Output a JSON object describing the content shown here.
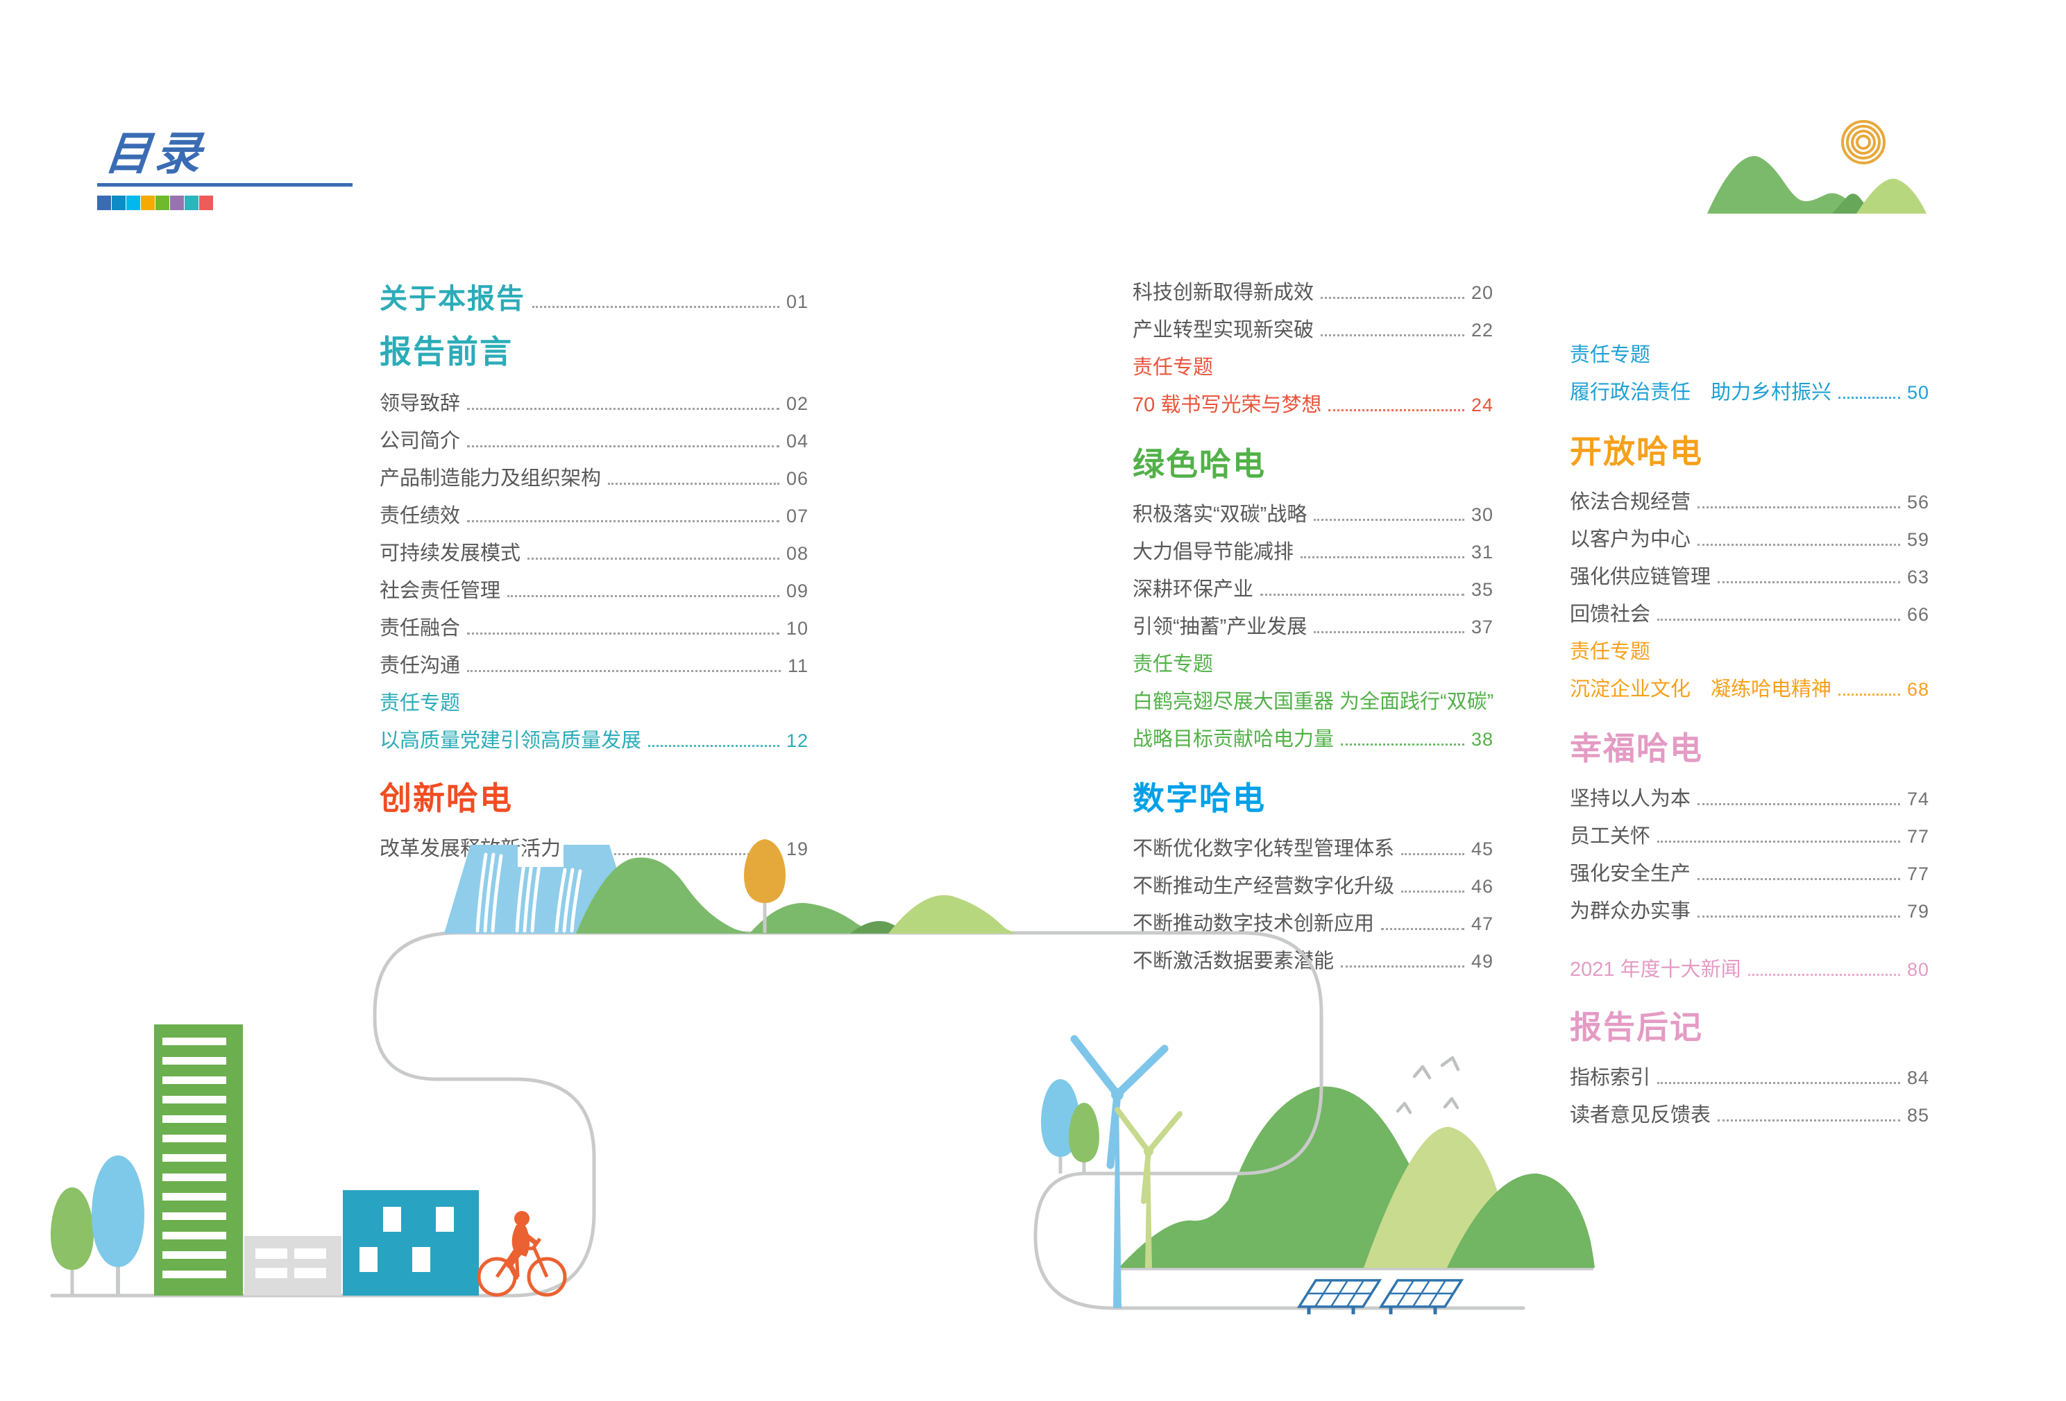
{
  "header": {
    "title": "目录"
  },
  "palette": {
    "title_blue": "#3A6CB4",
    "squares": [
      "#3A6CB4",
      "#0E8BC6",
      "#00B7EE",
      "#F5AA00",
      "#6FBA2C",
      "#9873B0",
      "#2CB5BC",
      "#EF5B5B"
    ]
  },
  "colors": {
    "teal": "#2BACB8",
    "redHead": "#F04E22",
    "red": "#E9543B",
    "green": "#52B148",
    "cyan": "#00A0E9",
    "blue": "#1E9FD4",
    "orange": "#F7A01B",
    "pink": "#E49BC4",
    "item_gray": "#595757",
    "num_gray": "#727171",
    "road_gray": "#C9CACA"
  },
  "columns": [
    {
      "blocks": [
        {
          "type": "section-row",
          "label": "关于本报告",
          "num": "01",
          "color": "teal"
        },
        {
          "type": "section",
          "label": "报告前言",
          "color": "teal",
          "gap": 6
        },
        {
          "type": "item",
          "label": "领导致辞",
          "num": "02",
          "gap": 18
        },
        {
          "type": "item",
          "label": "公司简介",
          "num": "04"
        },
        {
          "type": "item",
          "label": "产品制造能力及组织架构",
          "num": "06"
        },
        {
          "type": "item",
          "label": "责任绩效",
          "num": "07"
        },
        {
          "type": "item",
          "label": "可持续发展模式",
          "num": "08"
        },
        {
          "type": "item",
          "label": "社会责任管理",
          "num": "09"
        },
        {
          "type": "item",
          "label": "责任融合",
          "num": "10"
        },
        {
          "type": "item",
          "label": "责任沟通",
          "num": "11"
        },
        {
          "type": "topic",
          "label": "责任专题",
          "color": "teal"
        },
        {
          "type": "topic-row",
          "label": "以高质量党建引领高质量发展",
          "num": "12",
          "color": "teal"
        },
        {
          "type": "section",
          "label": "创新哈电",
          "color": "redHead",
          "gap": 14
        },
        {
          "type": "item",
          "label": "改革发展释放新活力",
          "num": "19",
          "gap": 16
        }
      ]
    },
    {
      "blocks": [
        {
          "type": "item",
          "label": "科技创新取得新成效",
          "num": "20"
        },
        {
          "type": "item",
          "label": "产业转型实现新突破",
          "num": "22"
        },
        {
          "type": "topic",
          "label": "责任专题",
          "color": "red"
        },
        {
          "type": "topic-row",
          "label": "70 载书写光荣与梦想",
          "num": "24",
          "color": "red"
        },
        {
          "type": "section",
          "label": "绿色哈电",
          "color": "green",
          "gap": 16
        },
        {
          "type": "item",
          "label": "积极落实“双碳”战略",
          "num": "30",
          "gap": 16
        },
        {
          "type": "item",
          "label": "大力倡导节能减排",
          "num": "31"
        },
        {
          "type": "item",
          "label": "深耕环保产业",
          "num": "35"
        },
        {
          "type": "item",
          "label": "引领“抽蓄”产业发展",
          "num": "37"
        },
        {
          "type": "topic",
          "label": "责任专题",
          "color": "green"
        },
        {
          "type": "topic-text",
          "label": "白鹤亮翅尽展大国重器  为全面践行“双碳”",
          "color": "green"
        },
        {
          "type": "topic-row",
          "label": "战略目标贡献哈电力量",
          "num": "38",
          "color": "green"
        },
        {
          "type": "section",
          "label": "数字哈电",
          "color": "cyan",
          "gap": 16
        },
        {
          "type": "item",
          "label": "不断优化数字化转型管理体系",
          "num": "45",
          "gap": 16
        },
        {
          "type": "item",
          "label": "不断推动生产经营数字化升级",
          "num": "46"
        },
        {
          "type": "item",
          "label": "不断推动数字技术创新应用",
          "num": "47"
        },
        {
          "type": "item",
          "label": "不断激活数据要素潜能",
          "num": "49"
        }
      ]
    },
    {
      "blocks": [
        {
          "type": "topic",
          "label": "责任专题",
          "color": "blue"
        },
        {
          "type": "topic-row",
          "label": "履行政治责任　助力乡村振兴",
          "num": "50",
          "color": "blue"
        },
        {
          "type": "section",
          "label": "开放哈电",
          "color": "orange",
          "gap": 16
        },
        {
          "type": "item",
          "label": "依法合规经营",
          "num": "56",
          "gap": 16
        },
        {
          "type": "item",
          "label": "以客户为中心",
          "num": "59"
        },
        {
          "type": "item",
          "label": "强化供应链管理",
          "num": "63"
        },
        {
          "type": "item",
          "label": "回馈社会",
          "num": "66"
        },
        {
          "type": "topic",
          "label": "责任专题",
          "color": "orange"
        },
        {
          "type": "topic-row",
          "label": "沉淀企业文化　凝练哈电精神",
          "num": "68",
          "color": "orange"
        },
        {
          "type": "section",
          "label": "幸福哈电",
          "color": "pink",
          "gap": 16
        },
        {
          "type": "item",
          "label": "坚持以人为本",
          "num": "74",
          "gap": 16
        },
        {
          "type": "item",
          "label": "员工关怀",
          "num": "77"
        },
        {
          "type": "item",
          "label": "强化安全生产",
          "num": "77"
        },
        {
          "type": "item",
          "label": "为群众办实事",
          "num": "79"
        },
        {
          "type": "topic-row",
          "label": "2021 年度十大新闻",
          "num": "80",
          "color": "pink",
          "gap": 30
        },
        {
          "type": "section",
          "label": "报告后记",
          "color": "pink",
          "gap": 14
        },
        {
          "type": "item",
          "label": "指标索引",
          "num": "84",
          "gap": 16
        },
        {
          "type": "item",
          "label": "读者意见反馈表",
          "num": "85"
        }
      ]
    }
  ],
  "illustrations": {
    "top_right": [
      "sun-icon",
      "mountains-icon"
    ],
    "bottom": [
      "dam-icon",
      "waterfall-lines",
      "hills-illustration",
      "orange-tree-icon",
      "road-path",
      "green-tree-icon",
      "blue-tree-icon",
      "office-building-icon",
      "low-building-icon",
      "apartment-building-icon",
      "cyclist-icon",
      "wind-turbine-icon",
      "solar-panel-icon",
      "birds-icon"
    ],
    "decor_colors": {
      "dam_blue": "#8FCDEB",
      "hill_green": "#7CBA6B",
      "hill_light_green": "#B7D77E",
      "mountain_green": "#72B562",
      "mountain_light": "#C9DB8E",
      "sun_orange": "#E8A83C",
      "tree_orange": "#E5A93B",
      "tree_green": "#8CC167",
      "tree_blue": "#7EC9E9",
      "building_green": "#6BAF4E",
      "building_gray": "#DCDCDC",
      "building_teal": "#29A3C2",
      "cyclist_orange": "#EB6132",
      "turbine_blue": "#7EC5EA",
      "turbine_green": "#C6D98C",
      "panel_blue": "#2E74AE",
      "bird_gray": "#BFC0C1"
    }
  }
}
